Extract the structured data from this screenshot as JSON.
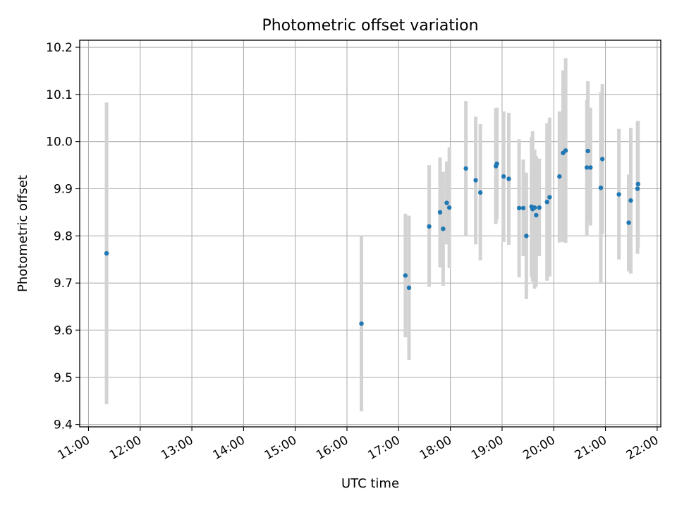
{
  "chart_data": {
    "type": "scatter",
    "title": "Photometric offset variation",
    "xlabel": "UTC time",
    "ylabel": "Photometric offset",
    "x_unit": "hour of day (UTC)",
    "xlim": [
      10.83,
      22.07
    ],
    "ylim": [
      9.395,
      10.215
    ],
    "xticks": [
      11,
      12,
      13,
      14,
      15,
      16,
      17,
      18,
      19,
      20,
      21,
      22
    ],
    "xtick_labels": [
      "11:00",
      "12:00",
      "13:00",
      "14:00",
      "15:00",
      "16:00",
      "17:00",
      "18:00",
      "19:00",
      "20:00",
      "21:00",
      "22:00"
    ],
    "yticks": [
      9.4,
      9.5,
      9.6,
      9.7,
      9.8,
      9.9,
      10.0,
      10.1,
      10.2
    ],
    "ytick_labels": [
      "9.4",
      "9.5",
      "9.6",
      "9.7",
      "9.8",
      "9.9",
      "10.0",
      "10.1",
      "10.2"
    ],
    "grid": true,
    "colors": {
      "point": "#1f77b4",
      "errorbar": "#d3d3d3",
      "grid": "#b0b0b0"
    },
    "points": [
      {
        "x": 11.35,
        "y": 9.763,
        "ylo": 9.443,
        "yhi": 10.083
      },
      {
        "x": 16.28,
        "y": 9.614,
        "ylo": 9.428,
        "yhi": 9.8
      },
      {
        "x": 17.13,
        "y": 9.716,
        "ylo": 9.585,
        "yhi": 9.847
      },
      {
        "x": 17.2,
        "y": 9.69,
        "ylo": 9.537,
        "yhi": 9.843
      },
      {
        "x": 17.59,
        "y": 9.82,
        "ylo": 9.692,
        "yhi": 9.95
      },
      {
        "x": 17.8,
        "y": 9.85,
        "ylo": 9.733,
        "yhi": 9.966
      },
      {
        "x": 17.86,
        "y": 9.815,
        "ylo": 9.694,
        "yhi": 9.936
      },
      {
        "x": 17.93,
        "y": 9.87,
        "ylo": 9.782,
        "yhi": 9.958
      },
      {
        "x": 17.98,
        "y": 9.86,
        "ylo": 9.732,
        "yhi": 9.988
      },
      {
        "x": 18.3,
        "y": 9.943,
        "ylo": 9.8,
        "yhi": 10.086
      },
      {
        "x": 18.49,
        "y": 9.918,
        "ylo": 9.782,
        "yhi": 10.053
      },
      {
        "x": 18.58,
        "y": 9.892,
        "ylo": 9.748,
        "yhi": 10.037
      },
      {
        "x": 18.88,
        "y": 9.948,
        "ylo": 9.825,
        "yhi": 10.071
      },
      {
        "x": 18.9,
        "y": 9.953,
        "ylo": 9.835,
        "yhi": 10.072
      },
      {
        "x": 19.03,
        "y": 9.926,
        "ylo": 9.787,
        "yhi": 10.064
      },
      {
        "x": 19.13,
        "y": 9.921,
        "ylo": 9.781,
        "yhi": 10.061
      },
      {
        "x": 19.33,
        "y": 9.859,
        "ylo": 9.712,
        "yhi": 10.005
      },
      {
        "x": 19.41,
        "y": 9.859,
        "ylo": 9.757,
        "yhi": 9.962
      },
      {
        "x": 19.47,
        "y": 9.8,
        "ylo": 9.666,
        "yhi": 9.934
      },
      {
        "x": 19.57,
        "y": 9.862,
        "ylo": 9.713,
        "yhi": 10.01
      },
      {
        "x": 19.59,
        "y": 9.857,
        "ylo": 9.703,
        "yhi": 10.022
      },
      {
        "x": 19.63,
        "y": 9.86,
        "ylo": 9.688,
        "yhi": 9.983
      },
      {
        "x": 19.66,
        "y": 9.844,
        "ylo": 9.693,
        "yhi": 9.97
      },
      {
        "x": 19.72,
        "y": 9.86,
        "ylo": 9.757,
        "yhi": 9.964
      },
      {
        "x": 19.87,
        "y": 9.872,
        "ylo": 9.705,
        "yhi": 10.039
      },
      {
        "x": 19.92,
        "y": 9.882,
        "ylo": 9.714,
        "yhi": 10.051
      },
      {
        "x": 20.11,
        "y": 9.926,
        "ylo": 9.786,
        "yhi": 10.064
      },
      {
        "x": 20.18,
        "y": 9.976,
        "ylo": 9.787,
        "yhi": 10.151
      },
      {
        "x": 20.23,
        "y": 9.981,
        "ylo": 9.785,
        "yhi": 10.177
      },
      {
        "x": 20.64,
        "y": 9.945,
        "ylo": 9.802,
        "yhi": 10.089
      },
      {
        "x": 20.66,
        "y": 9.98,
        "ylo": 9.832,
        "yhi": 10.128
      },
      {
        "x": 20.71,
        "y": 9.945,
        "ylo": 9.822,
        "yhi": 10.072
      },
      {
        "x": 20.91,
        "y": 9.902,
        "ylo": 9.698,
        "yhi": 10.105
      },
      {
        "x": 20.94,
        "y": 9.963,
        "ylo": 9.804,
        "yhi": 10.122
      },
      {
        "x": 21.26,
        "y": 9.888,
        "ylo": 9.75,
        "yhi": 10.027
      },
      {
        "x": 21.45,
        "y": 9.828,
        "ylo": 9.725,
        "yhi": 9.93
      },
      {
        "x": 21.49,
        "y": 9.875,
        "ylo": 9.72,
        "yhi": 10.029
      },
      {
        "x": 21.62,
        "y": 9.9,
        "ylo": 9.762,
        "yhi": 10.041
      },
      {
        "x": 21.63,
        "y": 9.91,
        "ylo": 9.776,
        "yhi": 10.044
      }
    ]
  }
}
